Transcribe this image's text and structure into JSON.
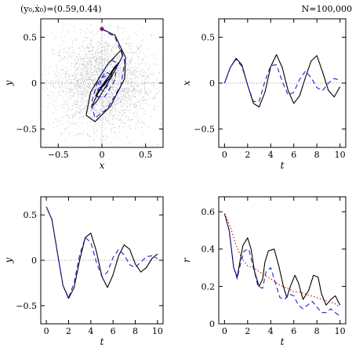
{
  "header": {
    "init_label": "(y₀,ẋ₀)=(0.59,0.44)",
    "n_label": "N=100,000"
  },
  "colors": {
    "model_a": "#000000",
    "model_b": "#2020d0",
    "model_c": "#c00000",
    "marker": "#8b1a4a",
    "dots": "#b8b8b8",
    "ref": "#777777"
  },
  "chart_data": [
    {
      "id": "orbit",
      "type": "line",
      "xlabel": "x",
      "ylabel": "y",
      "xlim": [
        -0.7,
        0.7
      ],
      "ylim": [
        -0.7,
        0.7
      ],
      "xticks": [
        -0.5,
        0,
        0.5
      ],
      "xtick_labels": [
        "−0.5",
        "0",
        "0.5"
      ],
      "yticks": [
        -0.5,
        0,
        0.5
      ],
      "ytick_labels": [
        "−0.5",
        "0",
        "0.5"
      ],
      "start_point": {
        "x": 0,
        "y": 0.59
      },
      "background": "scattered point cloud of N particles centred on origin",
      "series": [
        {
          "style": "solid",
          "color": "#000000",
          "x": [
            0,
            0.15,
            0.27,
            0.26,
            0.1,
            -0.08,
            -0.18,
            -0.13,
            0.06,
            0.22,
            0.24,
            0.1,
            -0.06,
            -0.12,
            -0.05,
            0.1,
            0.19,
            0.14,
            0.02,
            -0.07,
            -0.05,
            0.05,
            0.12,
            0.1,
            0.02,
            -0.03
          ],
          "y": [
            0.59,
            0.52,
            0.28,
            0.05,
            -0.25,
            -0.42,
            -0.35,
            -0.1,
            0.2,
            0.36,
            0.3,
            0.05,
            -0.2,
            -0.26,
            -0.12,
            0.1,
            0.22,
            0.17,
            -0.02,
            -0.14,
            -0.1,
            0.04,
            0.12,
            0.07,
            -0.03,
            -0.05
          ]
        },
        {
          "style": "dashed",
          "color": "#2020d0",
          "x": [
            0,
            0.15,
            0.26,
            0.22,
            0.06,
            -0.08,
            -0.12,
            -0.04,
            0.1,
            0.18,
            0.14,
            0.03,
            -0.05,
            -0.04,
            0.04,
            0.1,
            0.07,
            0.01,
            -0.03,
            0.0,
            0.05,
            0.06,
            0.03
          ],
          "y": [
            0.59,
            0.5,
            0.24,
            -0.02,
            -0.28,
            -0.38,
            -0.22,
            0.05,
            0.25,
            0.22,
            0.02,
            -0.15,
            -0.15,
            0.0,
            0.12,
            0.1,
            -0.02,
            -0.09,
            -0.04,
            0.06,
            0.08,
            0.02,
            -0.03
          ]
        }
      ]
    },
    {
      "id": "x_vs_t",
      "type": "line",
      "xlabel": "t",
      "ylabel": "x",
      "xlim": [
        -0.5,
        10.5
      ],
      "ylim": [
        -0.7,
        0.7
      ],
      "xticks": [
        0,
        2,
        4,
        6,
        8,
        10
      ],
      "xtick_labels": [
        "0",
        "2",
        "4",
        "6",
        "8",
        "10"
      ],
      "yticks": [
        -0.5,
        0,
        0.5
      ],
      "ytick_labels": [
        "−0.5",
        "0",
        "0.5"
      ],
      "series": [
        {
          "style": "solid",
          "color": "#000000",
          "x": [
            0,
            0.5,
            1,
            1.5,
            2,
            2.5,
            3,
            3.5,
            4,
            4.5,
            5,
            5.5,
            6,
            6.5,
            7,
            7.5,
            8,
            8.5,
            9,
            9.5,
            10
          ],
          "y": [
            0,
            0.17,
            0.27,
            0.2,
            -0.02,
            -0.22,
            -0.26,
            -0.1,
            0.18,
            0.31,
            0.17,
            -0.08,
            -0.22,
            -0.14,
            0.06,
            0.24,
            0.3,
            0.12,
            -0.08,
            -0.15,
            -0.04
          ]
        },
        {
          "style": "dashed",
          "color": "#2020d0",
          "x": [
            0,
            0.5,
            1,
            1.5,
            2,
            2.5,
            3,
            3.5,
            4,
            4.5,
            5,
            5.5,
            6,
            6.5,
            7,
            7.5,
            8,
            8.5,
            9,
            9.5,
            10
          ],
          "y": [
            0,
            0.17,
            0.26,
            0.18,
            -0.02,
            -0.2,
            -0.2,
            0.02,
            0.19,
            0.2,
            0.02,
            -0.13,
            -0.1,
            0.04,
            0.13,
            0.06,
            -0.05,
            -0.08,
            0.0,
            0.05,
            0.03
          ]
        }
      ]
    },
    {
      "id": "y_vs_t",
      "type": "line",
      "xlabel": "t",
      "ylabel": "y",
      "xlim": [
        -0.5,
        10.5
      ],
      "ylim": [
        -0.7,
        0.7
      ],
      "xticks": [
        0,
        2,
        4,
        6,
        8,
        10
      ],
      "xtick_labels": [
        "0",
        "2",
        "4",
        "6",
        "8",
        "10"
      ],
      "yticks": [
        -0.5,
        0,
        0.5
      ],
      "ytick_labels": [
        "−0.5",
        "0",
        "0.5"
      ],
      "series": [
        {
          "style": "solid",
          "color": "#000000",
          "x": [
            0,
            0.5,
            1,
            1.5,
            2,
            2.5,
            3,
            3.5,
            4,
            4.5,
            5,
            5.5,
            6,
            6.5,
            7,
            7.5,
            8,
            8.5,
            9,
            9.5,
            10
          ],
          "y": [
            0.59,
            0.45,
            0.08,
            -0.28,
            -0.42,
            -0.3,
            0.0,
            0.25,
            0.3,
            0.1,
            -0.18,
            -0.3,
            -0.16,
            0.05,
            0.17,
            0.12,
            -0.04,
            -0.13,
            -0.08,
            0.02,
            0.07
          ]
        },
        {
          "style": "dashed",
          "color": "#2020d0",
          "x": [
            0,
            0.5,
            1,
            1.5,
            2,
            2.5,
            3,
            3.5,
            4,
            4.5,
            5,
            5.5,
            6,
            6.5,
            7,
            7.5,
            8,
            8.5,
            9,
            9.5,
            10
          ],
          "y": [
            0.59,
            0.45,
            0.08,
            -0.28,
            -0.41,
            -0.25,
            0.06,
            0.25,
            0.2,
            -0.02,
            -0.18,
            -0.13,
            0.03,
            0.12,
            0.06,
            -0.05,
            -0.08,
            -0.02,
            0.04,
            0.05,
            0.02
          ]
        }
      ]
    },
    {
      "id": "r_vs_t",
      "type": "line",
      "xlabel": "t",
      "ylabel": "r",
      "xlim": [
        -0.5,
        10.5
      ],
      "ylim": [
        0,
        0.68
      ],
      "xticks": [
        0,
        2,
        4,
        6,
        8,
        10
      ],
      "xtick_labels": [
        "0",
        "2",
        "4",
        "6",
        "8",
        "10"
      ],
      "yticks": [
        0,
        0.2,
        0.4,
        0.6
      ],
      "ytick_labels": [
        "0",
        "0.2",
        "0.4",
        "0.6"
      ],
      "series": [
        {
          "style": "solid",
          "color": "#000000",
          "x": [
            0,
            0.4,
            0.8,
            1.1,
            1.3,
            1.6,
            2.0,
            2.3,
            2.6,
            3.0,
            3.3,
            3.5,
            3.8,
            4.3,
            4.7,
            5.1,
            5.4,
            5.7,
            6.1,
            6.4,
            6.8,
            7.3,
            7.7,
            8.1,
            8.4,
            8.8,
            9.2,
            9.6,
            10
          ],
          "y": [
            0.59,
            0.5,
            0.3,
            0.25,
            0.32,
            0.42,
            0.46,
            0.4,
            0.28,
            0.2,
            0.24,
            0.33,
            0.39,
            0.4,
            0.31,
            0.2,
            0.14,
            0.2,
            0.26,
            0.22,
            0.13,
            0.18,
            0.26,
            0.25,
            0.16,
            0.1,
            0.13,
            0.15,
            0.1
          ]
        },
        {
          "style": "dashed",
          "color": "#2020d0",
          "x": [
            0,
            0.4,
            0.8,
            1.1,
            1.3,
            1.7,
            2.1,
            2.5,
            2.9,
            3.3,
            3.6,
            4.0,
            4.4,
            4.8,
            5.2,
            5.6,
            6.0,
            6.4,
            6.8,
            7.2,
            7.6,
            8.0,
            8.4,
            8.8,
            9.2,
            9.6,
            10
          ],
          "y": [
            0.59,
            0.5,
            0.3,
            0.24,
            0.3,
            0.39,
            0.4,
            0.3,
            0.2,
            0.19,
            0.28,
            0.3,
            0.22,
            0.14,
            0.13,
            0.16,
            0.15,
            0.1,
            0.08,
            0.1,
            0.12,
            0.09,
            0.06,
            0.06,
            0.08,
            0.06,
            0.04
          ]
        },
        {
          "style": "dotted",
          "color": "#c00000",
          "x": [
            0,
            0.5,
            1,
            1.5,
            2,
            2.5,
            3,
            3.5,
            4,
            4.5,
            5,
            5.5,
            6,
            6.5,
            7,
            7.5,
            8,
            8.5,
            9,
            9.5,
            10
          ],
          "y": [
            0.59,
            0.52,
            0.42,
            0.35,
            0.31,
            0.3,
            0.28,
            0.26,
            0.24,
            0.22,
            0.2,
            0.19,
            0.17,
            0.17,
            0.16,
            0.15,
            0.14,
            0.13,
            0.12,
            0.11,
            0.09
          ]
        }
      ]
    }
  ]
}
